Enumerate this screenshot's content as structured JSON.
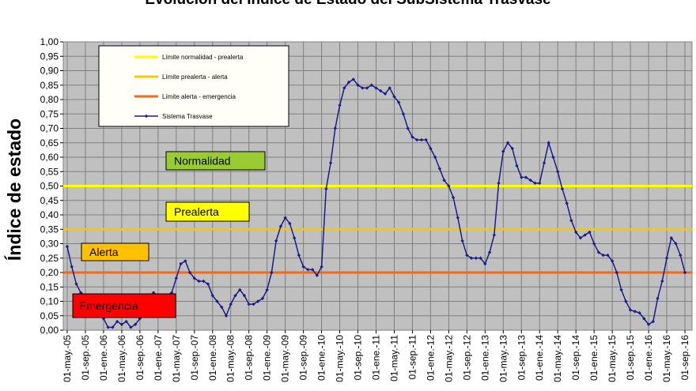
{
  "chart_data": {
    "type": "line",
    "title": "Evolución del Índice de Estado del SubSistema Trasvase",
    "y_label": "Índice de estado",
    "categories": [
      "01-may.-05",
      null,
      null,
      null,
      "01-sep.-05",
      null,
      null,
      null,
      "01-ene.-06",
      null,
      null,
      null,
      "01-may.-06",
      null,
      null,
      null,
      "01-sep.-06",
      null,
      null,
      null,
      "01-ene.-07",
      null,
      null,
      null,
      "01-may.-07",
      null,
      null,
      null,
      "01-sep.-07",
      null,
      null,
      null,
      "01-ene.-08",
      null,
      null,
      null,
      "01-may.-08",
      null,
      null,
      null,
      "01-sep.-08",
      null,
      null,
      null,
      "01-ene.-09",
      null,
      null,
      null,
      "01-may.-09",
      null,
      null,
      null,
      "01-sep.-09",
      null,
      null,
      null,
      "01-ene.-10",
      null,
      null,
      null,
      "01-may.-10",
      null,
      null,
      null,
      "01-sep.-10",
      null,
      null,
      null,
      "01-ene.-11",
      null,
      null,
      null,
      "01-may.-11",
      null,
      null,
      null,
      "01-sep.-11",
      null,
      null,
      null,
      "01-ene.-12",
      null,
      null,
      null,
      "01-may.-12",
      null,
      null,
      null,
      "01-sep.-12",
      null,
      null,
      null,
      "01-ene.-13",
      null,
      null,
      null,
      "01-may.-13",
      null,
      null,
      null,
      "01-sep.-13",
      null,
      null,
      null,
      "01-ene.-14",
      null,
      null,
      null,
      "01-may.-14",
      null,
      null,
      null,
      "01-sep.-14",
      null,
      null,
      null,
      "01-ene.-15",
      null,
      null,
      null,
      "01-may.-15",
      null,
      null,
      null,
      "01-sep.-15",
      null,
      null,
      null,
      "01-ene.-16",
      null,
      null,
      null,
      "01-may.-16",
      null,
      null,
      null,
      "01-sep.-16"
    ],
    "series": [
      {
        "name": "Sistema Trasvase",
        "color": "#1c1c8a",
        "values": [
          0.29,
          0.22,
          0.16,
          0.13,
          0.12,
          0.12,
          0.1,
          0.07,
          0.04,
          0.01,
          0.01,
          0.03,
          0.02,
          0.03,
          0.01,
          0.02,
          0.04,
          0.07,
          0.1,
          0.13,
          0.12,
          0.12,
          0.12,
          0.13,
          0.18,
          0.23,
          0.24,
          0.2,
          0.18,
          0.17,
          0.17,
          0.16,
          0.12,
          0.1,
          0.08,
          0.05,
          0.09,
          0.12,
          0.14,
          0.12,
          0.09,
          0.09,
          0.1,
          0.11,
          0.14,
          0.2,
          0.31,
          0.36,
          0.39,
          0.37,
          0.32,
          0.26,
          0.22,
          0.21,
          0.21,
          0.19,
          0.22,
          0.49,
          0.58,
          0.7,
          0.78,
          0.84,
          0.86,
          0.87,
          0.85,
          0.84,
          0.84,
          0.85,
          0.84,
          0.83,
          0.82,
          0.84,
          0.81,
          0.79,
          0.75,
          0.7,
          0.67,
          0.66,
          0.66,
          0.66,
          0.63,
          0.6,
          0.56,
          0.52,
          0.5,
          0.46,
          0.39,
          0.31,
          0.26,
          0.25,
          0.25,
          0.25,
          0.23,
          0.27,
          0.33,
          0.51,
          0.62,
          0.65,
          0.63,
          0.57,
          0.53,
          0.53,
          0.52,
          0.51,
          0.51,
          0.58,
          0.65,
          0.6,
          0.55,
          0.49,
          0.44,
          0.38,
          0.34,
          0.32,
          0.33,
          0.34,
          0.3,
          0.27,
          0.26,
          0.26,
          0.24,
          0.2,
          0.14,
          0.1,
          0.07,
          0.065,
          0.06,
          0.04,
          0.02,
          0.03,
          0.11,
          0.17,
          0.25,
          0.32,
          0.3,
          0.26,
          0.2
        ]
      }
    ],
    "reference_lines": [
      {
        "name": "Límite normalidad - prealerta",
        "value": 0.5,
        "color": "#ffff00"
      },
      {
        "name": "Límite prealerta - alerta",
        "value": 0.35,
        "color": "#f2c80f"
      },
      {
        "name": "Límite alerta - emergencia",
        "value": 0.2,
        "color": "#f26b1d"
      }
    ],
    "zones": [
      {
        "label": "Normalidad",
        "color": "#99cc33"
      },
      {
        "label": "Prealerta",
        "color": "#ffff00"
      },
      {
        "label": "Alerta",
        "color": "#ffc000"
      },
      {
        "label": "Emergencia",
        "color": "#ff0000"
      }
    ],
    "ylim": [
      0,
      1
    ],
    "yticks": [
      {
        "value": 0,
        "label": "0,00"
      },
      {
        "value": 0.05,
        "label": "0,05"
      },
      {
        "value": 0.1,
        "label": "0,10"
      },
      {
        "value": 0.15,
        "label": "0,15"
      },
      {
        "value": 0.2,
        "label": "0,20"
      },
      {
        "value": 0.25,
        "label": "0,25"
      },
      {
        "value": 0.3,
        "label": "0,30"
      },
      {
        "value": 0.35,
        "label": "0,35"
      },
      {
        "value": 0.4,
        "label": "0,40"
      },
      {
        "value": 0.45,
        "label": "0,45"
      },
      {
        "value": 0.5,
        "label": "0,50"
      },
      {
        "value": 0.55,
        "label": "0,55"
      },
      {
        "value": 0.6,
        "label": "0,60"
      },
      {
        "value": 0.65,
        "label": "0,65"
      },
      {
        "value": 0.7,
        "label": "0,70"
      },
      {
        "value": 0.75,
        "label": "0,75"
      },
      {
        "value": 0.8,
        "label": "0,80"
      },
      {
        "value": 0.85,
        "label": "0,85"
      },
      {
        "value": 0.9,
        "label": "0,90"
      },
      {
        "value": 0.95,
        "label": "0,95"
      },
      {
        "value": 1,
        "label": "1,00"
      }
    ],
    "grid": true,
    "legend": "upper left"
  }
}
